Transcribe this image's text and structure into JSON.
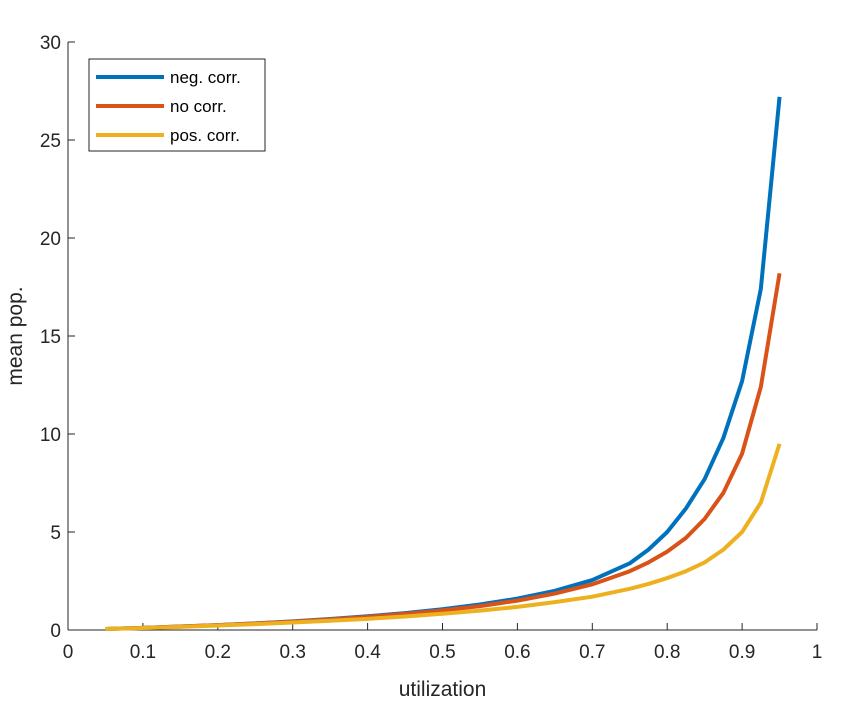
{
  "chart_data": {
    "type": "line",
    "title": "",
    "xlabel": "utilization",
    "ylabel": "mean pop.",
    "xlim": [
      0,
      1
    ],
    "ylim": [
      0,
      30
    ],
    "xticks": [
      0,
      0.1,
      0.2,
      0.3,
      0.4,
      0.5,
      0.6,
      0.7,
      0.8,
      0.9,
      1
    ],
    "xtick_labels": [
      "0",
      "0.1",
      "0.2",
      "0.3",
      "0.4",
      "0.5",
      "0.6",
      "0.7",
      "0.8",
      "0.9",
      "1"
    ],
    "yticks": [
      0,
      5,
      10,
      15,
      20,
      25,
      30
    ],
    "ytick_labels": [
      "0",
      "5",
      "10",
      "15",
      "20",
      "25",
      "30"
    ],
    "grid": false,
    "legend_position": "top-left",
    "x": [
      0.05,
      0.1,
      0.15,
      0.2,
      0.25,
      0.3,
      0.35,
      0.4,
      0.45,
      0.5,
      0.55,
      0.6,
      0.65,
      0.7,
      0.75,
      0.775,
      0.8,
      0.825,
      0.85,
      0.875,
      0.9,
      0.925,
      0.95
    ],
    "series": [
      {
        "name": "neg. corr.",
        "color": "#0072BD",
        "values": [
          0.05,
          0.11,
          0.18,
          0.25,
          0.34,
          0.44,
          0.56,
          0.7,
          0.86,
          1.06,
          1.3,
          1.6,
          2.0,
          2.55,
          3.4,
          4.1,
          5.0,
          6.2,
          7.7,
          9.8,
          12.7,
          17.4,
          27.2
        ]
      },
      {
        "name": "no corr.",
        "color": "#D95319",
        "values": [
          0.05,
          0.11,
          0.18,
          0.25,
          0.33,
          0.43,
          0.54,
          0.67,
          0.82,
          1.0,
          1.22,
          1.5,
          1.86,
          2.33,
          3.0,
          3.45,
          4.0,
          4.7,
          5.67,
          7.0,
          9.0,
          12.4,
          18.2
        ]
      },
      {
        "name": "pos. corr.",
        "color": "#EDB120",
        "values": [
          0.05,
          0.1,
          0.16,
          0.23,
          0.3,
          0.38,
          0.47,
          0.57,
          0.69,
          0.83,
          0.99,
          1.18,
          1.42,
          1.7,
          2.1,
          2.35,
          2.65,
          3.0,
          3.45,
          4.1,
          5.0,
          6.5,
          9.5
        ]
      }
    ]
  }
}
